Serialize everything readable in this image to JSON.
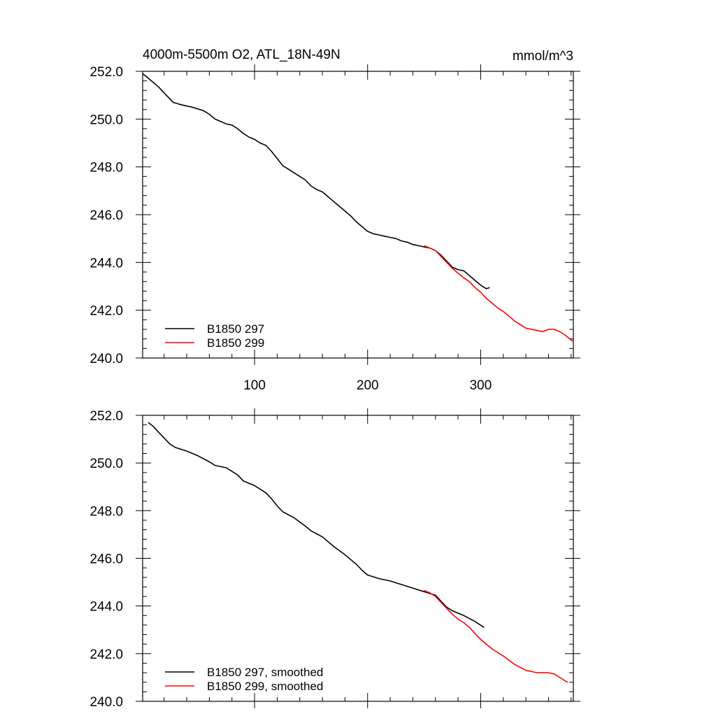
{
  "chart_data": [
    {
      "type": "line",
      "title": "4000m-5500m O2, ATL_18N-49N",
      "units": "mmol/m^3",
      "xlabel": "",
      "ylabel": "",
      "xlim": [
        1,
        382
      ],
      "ylim": [
        240.0,
        252.0
      ],
      "xticks": [
        "100",
        "200",
        "300"
      ],
      "yticks": [
        "240.0",
        "242.0",
        "244.0",
        "246.0",
        "248.0",
        "250.0",
        "252.0"
      ],
      "legend_position": "bottom-left",
      "series": [
        {
          "name": "B1850 297",
          "color": "#000000",
          "points": [
            [
              1,
              251.9
            ],
            [
              5,
              251.75
            ],
            [
              10,
              251.55
            ],
            [
              15,
              251.35
            ],
            [
              20,
              251.1
            ],
            [
              25,
              250.85
            ],
            [
              28,
              250.7
            ],
            [
              35,
              250.6
            ],
            [
              45,
              250.5
            ],
            [
              55,
              250.35
            ],
            [
              60,
              250.2
            ],
            [
              65,
              250.0
            ],
            [
              70,
              249.9
            ],
            [
              75,
              249.8
            ],
            [
              80,
              249.75
            ],
            [
              85,
              249.6
            ],
            [
              90,
              249.4
            ],
            [
              95,
              249.25
            ],
            [
              100,
              249.15
            ],
            [
              105,
              249.0
            ],
            [
              110,
              248.9
            ],
            [
              115,
              248.65
            ],
            [
              120,
              248.35
            ],
            [
              125,
              248.05
            ],
            [
              130,
              247.9
            ],
            [
              135,
              247.75
            ],
            [
              140,
              247.6
            ],
            [
              145,
              247.45
            ],
            [
              150,
              247.2
            ],
            [
              155,
              247.05
            ],
            [
              160,
              246.95
            ],
            [
              165,
              246.75
            ],
            [
              170,
              246.55
            ],
            [
              175,
              246.35
            ],
            [
              180,
              246.15
            ],
            [
              185,
              245.95
            ],
            [
              190,
              245.7
            ],
            [
              195,
              245.5
            ],
            [
              200,
              245.3
            ],
            [
              205,
              245.2
            ],
            [
              210,
              245.15
            ],
            [
              215,
              245.1
            ],
            [
              220,
              245.05
            ],
            [
              225,
              245.0
            ],
            [
              230,
              244.9
            ],
            [
              235,
              244.85
            ],
            [
              240,
              244.75
            ],
            [
              245,
              244.7
            ],
            [
              250,
              244.65
            ],
            [
              255,
              244.6
            ],
            [
              260,
              244.5
            ],
            [
              265,
              244.3
            ],
            [
              270,
              244.05
            ],
            [
              275,
              243.8
            ],
            [
              280,
              243.7
            ],
            [
              285,
              243.65
            ],
            [
              290,
              243.45
            ],
            [
              295,
              243.25
            ],
            [
              300,
              243.05
            ],
            [
              305,
              242.9
            ],
            [
              308,
              242.95
            ]
          ]
        },
        {
          "name": "B1850 299",
          "color": "#ff0000",
          "points": [
            [
              250,
              244.7
            ],
            [
              255,
              244.6
            ],
            [
              260,
              244.5
            ],
            [
              265,
              244.25
            ],
            [
              270,
              244.0
            ],
            [
              275,
              243.75
            ],
            [
              280,
              243.55
            ],
            [
              285,
              243.35
            ],
            [
              290,
              243.2
            ],
            [
              295,
              242.95
            ],
            [
              300,
              242.75
            ],
            [
              305,
              242.5
            ],
            [
              310,
              242.3
            ],
            [
              315,
              242.1
            ],
            [
              320,
              241.95
            ],
            [
              325,
              241.75
            ],
            [
              330,
              241.55
            ],
            [
              335,
              241.4
            ],
            [
              340,
              241.25
            ],
            [
              345,
              241.2
            ],
            [
              350,
              241.15
            ],
            [
              355,
              241.1
            ],
            [
              360,
              241.2
            ],
            [
              365,
              241.2
            ],
            [
              370,
              241.1
            ],
            [
              375,
              240.95
            ],
            [
              380,
              240.75
            ],
            [
              382,
              240.7
            ]
          ]
        }
      ]
    },
    {
      "type": "line",
      "xlabel": "",
      "ylabel": "",
      "xlim": [
        1,
        382
      ],
      "ylim": [
        240.0,
        252.0
      ],
      "yticks": [
        "240.0",
        "242.0",
        "244.0",
        "246.0",
        "248.0",
        "250.0",
        "252.0"
      ],
      "legend_position": "bottom-left",
      "series": [
        {
          "name": "B1850 297, smoothed",
          "color": "#000000",
          "points": [
            [
              6,
              251.7
            ],
            [
              10,
              251.55
            ],
            [
              15,
              251.3
            ],
            [
              20,
              251.05
            ],
            [
              25,
              250.8
            ],
            [
              30,
              250.65
            ],
            [
              40,
              250.5
            ],
            [
              50,
              250.3
            ],
            [
              60,
              250.05
            ],
            [
              65,
              249.9
            ],
            [
              75,
              249.8
            ],
            [
              85,
              249.5
            ],
            [
              90,
              249.25
            ],
            [
              100,
              249.05
            ],
            [
              110,
              248.75
            ],
            [
              115,
              248.5
            ],
            [
              120,
              248.2
            ],
            [
              125,
              247.95
            ],
            [
              135,
              247.7
            ],
            [
              145,
              247.35
            ],
            [
              150,
              247.15
            ],
            [
              160,
              246.9
            ],
            [
              170,
              246.5
            ],
            [
              180,
              246.15
            ],
            [
              190,
              245.75
            ],
            [
              195,
              245.5
            ],
            [
              200,
              245.3
            ],
            [
              210,
              245.15
            ],
            [
              220,
              245.05
            ],
            [
              230,
              244.9
            ],
            [
              240,
              244.75
            ],
            [
              250,
              244.6
            ],
            [
              260,
              244.45
            ],
            [
              265,
              244.2
            ],
            [
              270,
              243.95
            ],
            [
              275,
              243.8
            ],
            [
              285,
              243.6
            ],
            [
              295,
              243.35
            ],
            [
              303,
              243.1
            ]
          ]
        },
        {
          "name": "B1850 299, smoothed",
          "color": "#ff0000",
          "points": [
            [
              250,
              244.65
            ],
            [
              255,
              244.55
            ],
            [
              260,
              244.4
            ],
            [
              265,
              244.15
            ],
            [
              270,
              243.9
            ],
            [
              275,
              243.65
            ],
            [
              280,
              243.45
            ],
            [
              285,
              243.3
            ],
            [
              290,
              243.1
            ],
            [
              295,
              242.85
            ],
            [
              300,
              242.6
            ],
            [
              305,
              242.4
            ],
            [
              310,
              242.2
            ],
            [
              320,
              241.9
            ],
            [
              330,
              241.55
            ],
            [
              340,
              241.3
            ],
            [
              350,
              241.2
            ],
            [
              360,
              241.2
            ],
            [
              365,
              241.15
            ],
            [
              370,
              241.0
            ],
            [
              375,
              240.85
            ],
            [
              377,
              240.8
            ]
          ]
        }
      ]
    }
  ]
}
